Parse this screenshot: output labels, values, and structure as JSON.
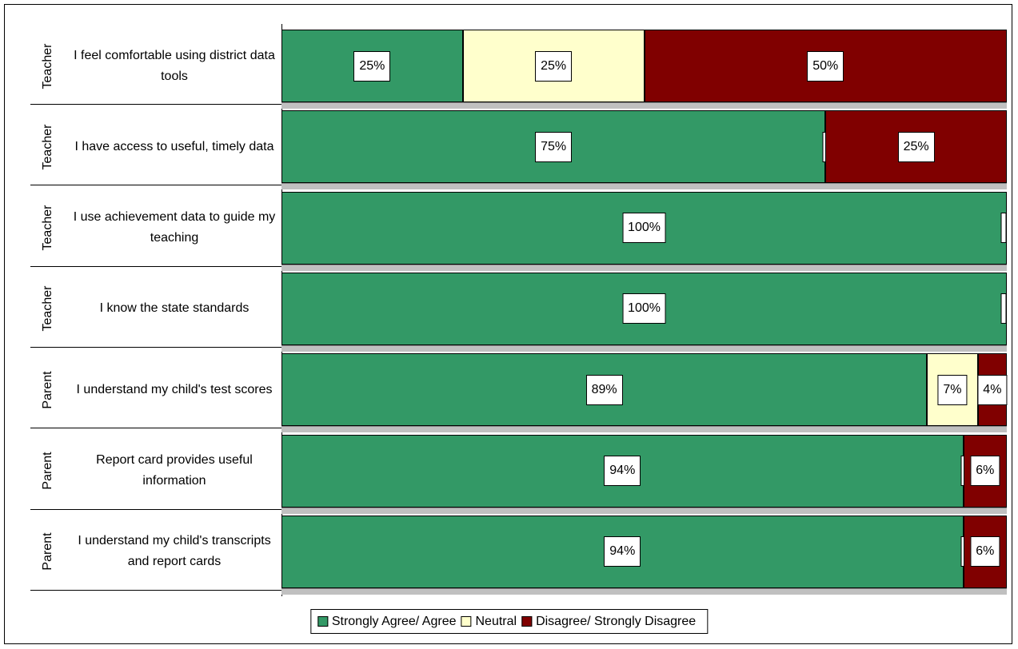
{
  "chart_data": {
    "type": "stacked_hbar",
    "groups": [
      "Teacher",
      "Teacher",
      "Teacher",
      "Teacher",
      "Parent",
      "Parent",
      "Parent"
    ],
    "categories": [
      "I feel comfortable using district data tools",
      "I have access to useful, timely data",
      "I use achievement data to guide my teaching",
      "I know the state standards",
      "I understand my child's test scores",
      "Report card provides useful information",
      "I understand my child's transcripts and report cards"
    ],
    "xlim": [
      0,
      100
    ],
    "series": [
      {
        "name": "Strongly Agree/ Agree",
        "color": "#339966",
        "values": [
          25,
          75,
          100,
          100,
          89,
          94,
          94
        ],
        "value_labels": [
          "25%",
          "75%",
          "100%",
          "100%",
          "89%",
          "94%",
          "94%"
        ]
      },
      {
        "name": "Neutral",
        "color": "#ffffcc",
        "values": [
          25,
          0,
          0,
          0,
          7,
          0,
          0
        ],
        "value_labels": [
          "25%",
          null,
          null,
          null,
          "7%",
          null,
          null
        ]
      },
      {
        "name": "Disagree/ Strongly Disagree",
        "color": "#800000",
        "values": [
          50,
          25,
          0,
          0,
          4,
          6,
          6
        ],
        "value_labels": [
          "50%",
          "25%",
          null,
          null,
          "4%",
          "6%",
          "6%"
        ]
      }
    ],
    "legend": "bottom"
  }
}
